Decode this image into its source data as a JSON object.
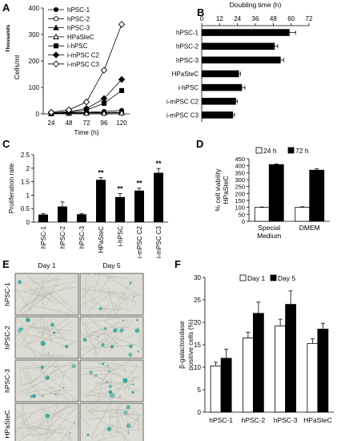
{
  "panels": {
    "A": "A",
    "B": "B",
    "C": "C",
    "D": "D",
    "E": "E",
    "F": "F"
  },
  "chart_data": [
    {
      "panel": "A",
      "type": "line",
      "title": "",
      "xlabel": "Time (h)",
      "ylabel": "Cells/ml",
      "yunit": "Thousands",
      "x": [
        24,
        48,
        72,
        96,
        120
      ],
      "ylim": [
        0,
        400
      ],
      "yticks": [
        0,
        100,
        200,
        300,
        400
      ],
      "legend_position": "top-left",
      "series": [
        {
          "name": "hPSC-1",
          "marker": "filled-circle",
          "values": [
            3,
            5,
            6,
            9,
            13
          ]
        },
        {
          "name": "hPSC-2",
          "marker": "open-circle",
          "values": [
            2,
            3,
            4,
            4,
            5
          ]
        },
        {
          "name": "hPSC-3",
          "marker": "filled-triangle",
          "values": [
            2,
            3,
            4,
            5,
            6
          ]
        },
        {
          "name": "HPaSteC",
          "marker": "open-triangle",
          "values": [
            1,
            2,
            3,
            3,
            4
          ]
        },
        {
          "name": "i-hPSC",
          "marker": "filled-square",
          "values": [
            3,
            6,
            14,
            40,
            88
          ]
        },
        {
          "name": "i-mPSC C2",
          "marker": "filled-diamond",
          "values": [
            4,
            8,
            20,
            58,
            130
          ]
        },
        {
          "name": "i-mPSC C3",
          "marker": "open-diamond",
          "values": [
            6,
            15,
            45,
            165,
            338
          ]
        }
      ]
    },
    {
      "panel": "B",
      "type": "bar",
      "orientation": "horizontal",
      "xlabel": "Doubling time (h)",
      "xlim": [
        0,
        72
      ],
      "xticks": [
        0,
        12,
        24,
        36,
        48,
        60,
        72
      ],
      "categories": [
        "hPSC-1",
        "hPSC-2",
        "hPSC-3",
        "HPaSteC",
        "i-hPSC",
        "i-mPSC C2",
        "i-mPSC C3"
      ],
      "values": [
        59,
        49,
        53,
        25,
        27,
        23,
        21
      ],
      "errors": [
        4,
        2,
        2,
        1,
        2,
        1,
        1
      ]
    },
    {
      "panel": "C",
      "type": "bar",
      "ylabel": "Proliferation rate",
      "ylim": [
        0,
        2.5
      ],
      "yticks": [
        0,
        0.5,
        1,
        1.5,
        2,
        2.5
      ],
      "categories": [
        "hPSC-1",
        "hPSC-2",
        "hPSC-3",
        "HPaSteC",
        "i-hPSC",
        "i-mPSC C2",
        "i-mPSC C3"
      ],
      "values": [
        0.28,
        0.58,
        0.29,
        1.57,
        0.93,
        1.17,
        1.83
      ],
      "errors": [
        0.03,
        0.17,
        0.02,
        0.08,
        0.13,
        0.09,
        0.16
      ],
      "significance": [
        "",
        "",
        "",
        "**",
        "**",
        "**",
        "**"
      ]
    },
    {
      "panel": "D",
      "type": "bar",
      "ylabel": "% cell viability HPaSteC",
      "ylim": [
        0,
        450
      ],
      "yticks": [
        0,
        50,
        100,
        150,
        200,
        250,
        300,
        350,
        400,
        450
      ],
      "legend_position": "top-left",
      "categories": [
        "Special Medium",
        "DMEM"
      ],
      "series": [
        {
          "name": "24 h",
          "fill": "#ffffff",
          "values": [
            100,
            100
          ],
          "errors": [
            3,
            5
          ]
        },
        {
          "name": "72 h",
          "fill": "#000000",
          "values": [
            408,
            368
          ],
          "errors": [
            4,
            10
          ]
        }
      ]
    },
    {
      "panel": "F",
      "type": "bar",
      "ylabel": "β-galactosidase positive cells (%)",
      "ylim": [
        0,
        30
      ],
      "yticks": [
        0,
        5,
        10,
        15,
        20,
        25,
        30
      ],
      "legend_position": "top",
      "categories": [
        "hPSC-1",
        "hPSC-2",
        "hPSC-3",
        "HPaSteC"
      ],
      "series": [
        {
          "name": "Day 1",
          "fill": "#ffffff",
          "values": [
            10.3,
            16.5,
            19.2,
            15.3
          ],
          "errors": [
            0.8,
            1.3,
            1.5,
            1.0
          ]
        },
        {
          "name": "Day 5",
          "fill": "#000000",
          "values": [
            12.0,
            22.0,
            24.0,
            18.5
          ],
          "errors": [
            2.0,
            2.5,
            3.0,
            1.3
          ]
        }
      ]
    }
  ],
  "panel_E": {
    "columns": [
      "Day 1",
      "Day 5"
    ],
    "rows": [
      "hPSC-1",
      "hPSC-2",
      "hPSC-3",
      "HPaSteC"
    ],
    "stain_color": "#2fa39a"
  }
}
